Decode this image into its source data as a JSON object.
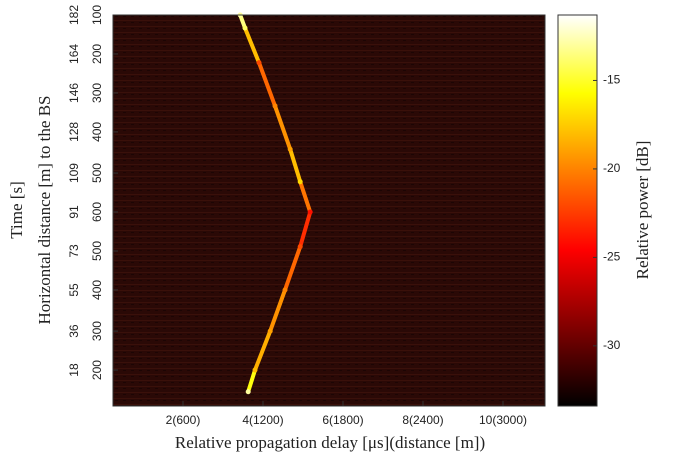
{
  "chart_data": {
    "type": "heatmap",
    "xlabel": "Relative propagation delay [μs](distance [m])",
    "ylabel": "Time [s]",
    "ylabel2": "Horizontal distance [m] to the BS",
    "xlim": [
      0.25,
      11.05
    ],
    "xticks": [
      {
        "value": 2,
        "label": "2(600)"
      },
      {
        "value": 4,
        "label": "4(1200)"
      },
      {
        "value": 6,
        "label": "6(1800)"
      },
      {
        "value": 8,
        "label": "8(2400)"
      },
      {
        "value": 10,
        "label": "10(3000)"
      }
    ],
    "ylim": [
      1.4,
      182
    ],
    "yticks": [
      18,
      36,
      55,
      73,
      91,
      109,
      128,
      146,
      164,
      182
    ],
    "distance_labels": [
      200,
      300,
      400,
      500,
      600,
      500,
      400,
      300,
      200,
      100
    ],
    "colorbar": {
      "label": "Relative power [dB]",
      "clim": [
        -33.4,
        -11.3
      ],
      "ticks": [
        -15,
        -20,
        -25,
        -30
      ],
      "colormap": "hot"
    },
    "background_db": -31,
    "ridge": {
      "x": [
        3.43,
        3.55,
        3.9,
        4.3,
        4.68,
        4.93,
        5.18,
        4.93,
        4.55,
        4.18,
        3.8,
        3.63
      ],
      "y": [
        182,
        176,
        160,
        140,
        120,
        105,
        91,
        75,
        55,
        36,
        18,
        8
      ],
      "values": [
        -13,
        -14,
        -22,
        -20,
        -19,
        -17,
        -24,
        -22,
        -20,
        -19,
        -18,
        -13
      ]
    }
  }
}
